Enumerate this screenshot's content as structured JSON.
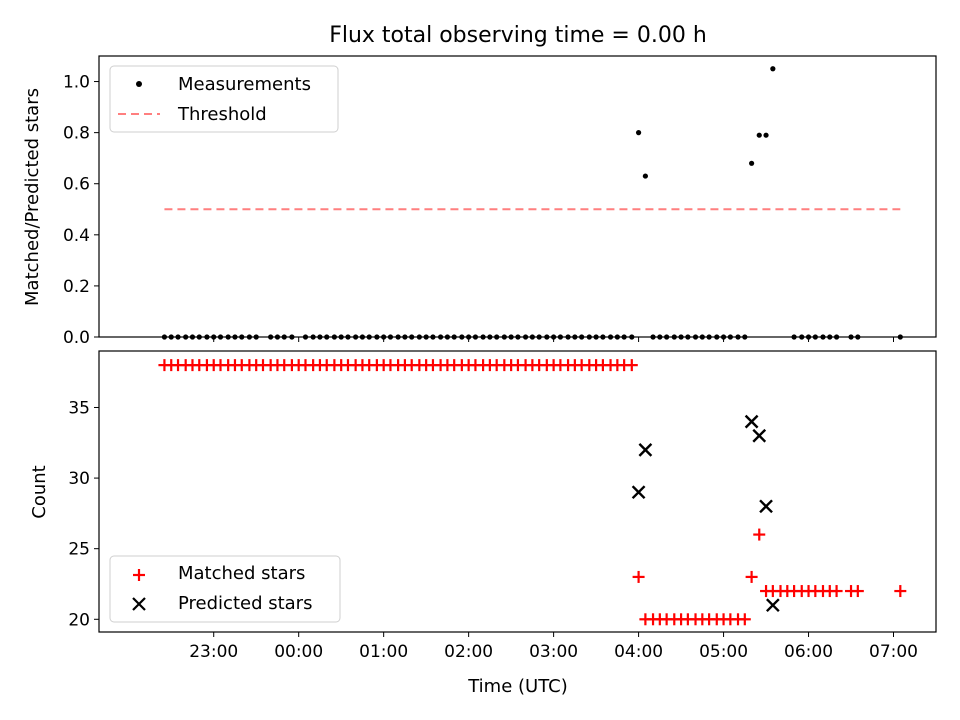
{
  "title": "Flux total observing time = 0.00 h",
  "chart_data": [
    {
      "type": "scatter",
      "ylabel": "Matched/Predicted stars",
      "ylim": [
        0,
        1.1
      ],
      "yticks": [
        0.0,
        0.2,
        0.4,
        0.6,
        0.8,
        1.0
      ],
      "ytick_labels": [
        "0.0",
        "0.2",
        "0.4",
        "0.6",
        "0.8",
        "1.0"
      ],
      "legend": {
        "placement": "top-left",
        "entries": [
          "Measurements",
          "Threshold"
        ]
      },
      "series": [
        {
          "name": "Measurements",
          "color": "#000000",
          "marker": "dot",
          "zero_x_hours": [
            22.42,
            22.5,
            22.58,
            22.67,
            22.75,
            22.83,
            22.92,
            23.0,
            23.08,
            23.17,
            23.25,
            23.33,
            23.42,
            23.5,
            23.67,
            23.75,
            23.83,
            23.92,
            24.08,
            24.17,
            24.25,
            24.33,
            24.42,
            24.5,
            24.58,
            24.67,
            24.75,
            24.83,
            24.92,
            25.0,
            25.08,
            25.17,
            25.25,
            25.33,
            25.42,
            25.5,
            25.58,
            25.67,
            25.75,
            25.83,
            25.92,
            26.0,
            26.08,
            26.17,
            26.25,
            26.33,
            26.42,
            26.5,
            26.58,
            26.67,
            26.75,
            26.83,
            26.92,
            27.0,
            27.08,
            27.17,
            27.25,
            27.33,
            27.42,
            27.5,
            27.58,
            27.67,
            27.75,
            27.83,
            27.92,
            28.17,
            28.25,
            28.33,
            28.42,
            28.5,
            28.58,
            28.67,
            28.75,
            28.83,
            28.92,
            29.0,
            29.08,
            29.17,
            29.25,
            29.83,
            29.92,
            30.0,
            30.08,
            30.17,
            30.25,
            30.33,
            30.5,
            30.58,
            31.08
          ],
          "points": [
            [
              28.0,
              0.8
            ],
            [
              28.08,
              0.63
            ],
            [
              29.33,
              0.68
            ],
            [
              29.42,
              0.79
            ],
            [
              29.5,
              0.79
            ],
            [
              29.58,
              1.05
            ]
          ]
        },
        {
          "name": "Threshold",
          "color": "#ff7f7f",
          "style": "dashed",
          "points": [
            [
              22.42,
              0.5
            ],
            [
              31.08,
              0.5
            ]
          ]
        }
      ]
    },
    {
      "type": "scatter",
      "xlabel": "Time (UTC)",
      "ylabel": "Count",
      "ylim": [
        19.1,
        39.0
      ],
      "yticks": [
        20,
        25,
        30,
        35
      ],
      "ytick_labels": [
        "20",
        "25",
        "30",
        "35"
      ],
      "xlim": [
        21.65,
        31.5
      ],
      "xticks": [
        23,
        24,
        25,
        26,
        27,
        28,
        29,
        30,
        31
      ],
      "xtick_labels": [
        "23:00",
        "00:00",
        "01:00",
        "02:00",
        "03:00",
        "04:00",
        "05:00",
        "06:00",
        "07:00"
      ],
      "legend": {
        "placement": "bottom-left",
        "entries": [
          "Matched stars",
          "Predicted stars"
        ]
      },
      "series": [
        {
          "name": "Matched stars",
          "color": "#ff0000",
          "marker": "plus",
          "points": [
            [
              22.42,
              38
            ],
            [
              22.5,
              38
            ],
            [
              22.58,
              38
            ],
            [
              22.67,
              38
            ],
            [
              22.75,
              38
            ],
            [
              22.83,
              38
            ],
            [
              22.92,
              38
            ],
            [
              23.0,
              38
            ],
            [
              23.08,
              38
            ],
            [
              23.17,
              38
            ],
            [
              23.25,
              38
            ],
            [
              23.33,
              38
            ],
            [
              23.42,
              38
            ],
            [
              23.5,
              38
            ],
            [
              23.58,
              38
            ],
            [
              23.67,
              38
            ],
            [
              23.75,
              38
            ],
            [
              23.83,
              38
            ],
            [
              23.92,
              38
            ],
            [
              24.0,
              38
            ],
            [
              24.08,
              38
            ],
            [
              24.17,
              38
            ],
            [
              24.25,
              38
            ],
            [
              24.33,
              38
            ],
            [
              24.42,
              38
            ],
            [
              24.5,
              38
            ],
            [
              24.58,
              38
            ],
            [
              24.67,
              38
            ],
            [
              24.75,
              38
            ],
            [
              24.83,
              38
            ],
            [
              24.92,
              38
            ],
            [
              25.0,
              38
            ],
            [
              25.08,
              38
            ],
            [
              25.17,
              38
            ],
            [
              25.25,
              38
            ],
            [
              25.33,
              38
            ],
            [
              25.42,
              38
            ],
            [
              25.5,
              38
            ],
            [
              25.58,
              38
            ],
            [
              25.67,
              38
            ],
            [
              25.75,
              38
            ],
            [
              25.83,
              38
            ],
            [
              25.92,
              38
            ],
            [
              26.0,
              38
            ],
            [
              26.08,
              38
            ],
            [
              26.17,
              38
            ],
            [
              26.25,
              38
            ],
            [
              26.33,
              38
            ],
            [
              26.42,
              38
            ],
            [
              26.5,
              38
            ],
            [
              26.58,
              38
            ],
            [
              26.67,
              38
            ],
            [
              26.75,
              38
            ],
            [
              26.83,
              38
            ],
            [
              26.92,
              38
            ],
            [
              27.0,
              38
            ],
            [
              27.08,
              38
            ],
            [
              27.17,
              38
            ],
            [
              27.25,
              38
            ],
            [
              27.33,
              38
            ],
            [
              27.42,
              38
            ],
            [
              27.5,
              38
            ],
            [
              27.58,
              38
            ],
            [
              27.67,
              38
            ],
            [
              27.75,
              38
            ],
            [
              27.83,
              38
            ],
            [
              27.92,
              38
            ],
            [
              28.0,
              23
            ],
            [
              28.08,
              20
            ],
            [
              28.17,
              20
            ],
            [
              28.25,
              20
            ],
            [
              28.33,
              20
            ],
            [
              28.42,
              20
            ],
            [
              28.5,
              20
            ],
            [
              28.58,
              20
            ],
            [
              28.67,
              20
            ],
            [
              28.75,
              20
            ],
            [
              28.83,
              20
            ],
            [
              28.92,
              20
            ],
            [
              29.0,
              20
            ],
            [
              29.08,
              20
            ],
            [
              29.17,
              20
            ],
            [
              29.25,
              20
            ],
            [
              29.33,
              23
            ],
            [
              29.42,
              26
            ],
            [
              29.5,
              22
            ],
            [
              29.58,
              22
            ],
            [
              29.67,
              22
            ],
            [
              29.75,
              22
            ],
            [
              29.83,
              22
            ],
            [
              29.92,
              22
            ],
            [
              30.0,
              22
            ],
            [
              30.08,
              22
            ],
            [
              30.17,
              22
            ],
            [
              30.25,
              22
            ],
            [
              30.33,
              22
            ],
            [
              30.5,
              22
            ],
            [
              30.58,
              22
            ],
            [
              31.08,
              22
            ]
          ]
        },
        {
          "name": "Predicted stars",
          "color": "#000000",
          "marker": "x",
          "points": [
            [
              28.0,
              29
            ],
            [
              28.08,
              32
            ],
            [
              29.33,
              34
            ],
            [
              29.42,
              33
            ],
            [
              29.5,
              28
            ],
            [
              29.58,
              21
            ]
          ]
        }
      ]
    }
  ]
}
